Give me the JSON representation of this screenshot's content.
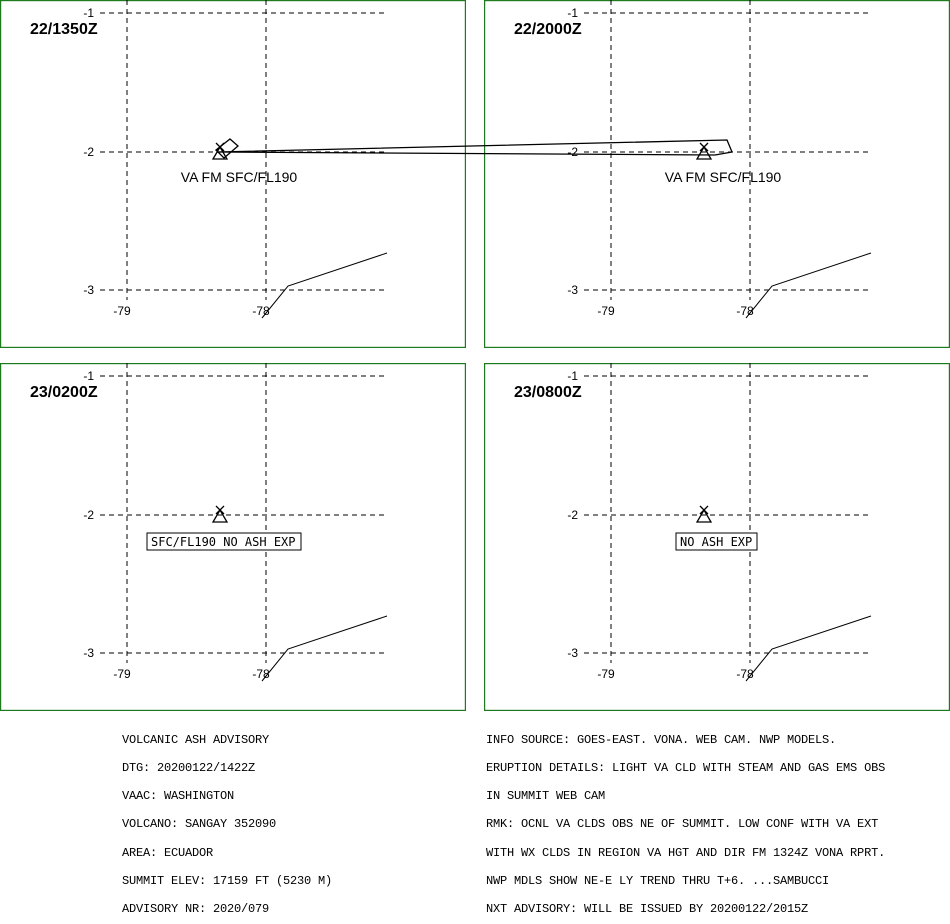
{
  "panels": [
    {
      "time": "22/1350Z",
      "label": "VA FM SFC/FL190",
      "boxed": false,
      "plume": "small"
    },
    {
      "time": "22/2000Z",
      "label": "VA FM SFC/FL190",
      "boxed": false,
      "plume": "large"
    },
    {
      "time": "23/0200Z",
      "label": "SFC/FL190 NO ASH EXP",
      "boxed": true,
      "plume": "none"
    },
    {
      "time": "23/0800Z",
      "label": "NO ASH EXP",
      "boxed": true,
      "plume": "none"
    }
  ],
  "axes": {
    "lat_labels": [
      "-1",
      "-2",
      "-3"
    ],
    "lon_labels": [
      "-79",
      "-78"
    ]
  },
  "advisory_left": [
    "VOLCANIC ASH ADVISORY",
    "DTG: 20200122/1422Z",
    "VAAC: WASHINGTON",
    "VOLCANO: SANGAY 352090",
    "AREA: ECUADOR",
    "SUMMIT ELEV: 17159 FT (5230 M)",
    "ADVISORY NR: 2020/079"
  ],
  "advisory_right": [
    "INFO SOURCE: GOES-EAST. VONA. WEB CAM. NWP MODELS.",
    "ERUPTION DETAILS: LIGHT VA CLD WITH STEAM AND GAS EMS OBS",
    "IN SUMMIT WEB CAM",
    "RMK: OCNL VA CLDS OBS NE OF SUMMIT. LOW CONF WITH VA EXT",
    "WITH WX CLDS IN REGION VA HGT AND DIR FM 1324Z VONA RPRT.",
    "NWP MDLS SHOW NE-E LY TREND THRU T+6. ...SAMBUCCI",
    "NXT ADVISORY: WILL BE ISSUED BY 20200122/2015Z"
  ],
  "colors": {
    "frame": "#1d7a1d",
    "ink": "#000000"
  },
  "icons": {
    "volcano": "triangle-volcano-icon"
  }
}
